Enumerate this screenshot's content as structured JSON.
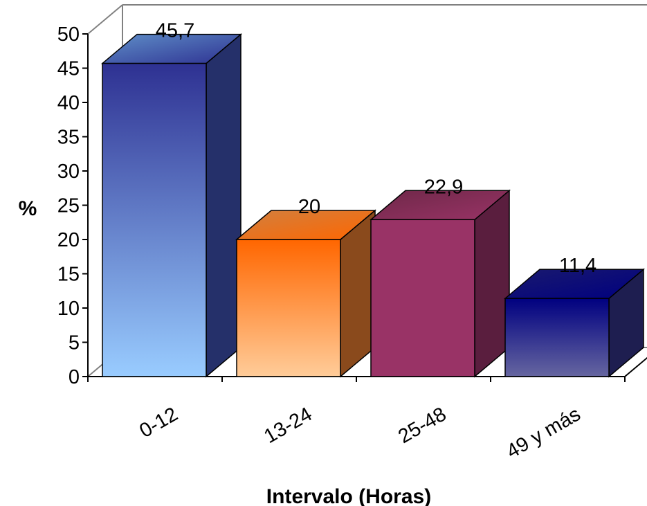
{
  "chart_data": {
    "type": "bar",
    "categories": [
      "0-12",
      "13-24",
      "25-48",
      "49 y más"
    ],
    "values": [
      45.7,
      20,
      22.9,
      11.4
    ],
    "value_labels": [
      "45,7",
      "20",
      "22,9",
      "11,4"
    ],
    "xlabel": "Intervalo (Horas)",
    "ylabel": "%",
    "ylim": [
      0,
      50
    ],
    "yticks": [
      0,
      5,
      10,
      15,
      20,
      25,
      30,
      35,
      40,
      45,
      50
    ],
    "grid": false,
    "legend": "none",
    "style": "3d-column",
    "colors": [
      {
        "top": "#2E3192",
        "bottom": "#99CCFF",
        "side": "#25306A",
        "cap": "#5F8FC8"
      },
      {
        "top": "#FF6600",
        "bottom": "#FFCC99",
        "side": "#8A4A1C",
        "cap": "#D08040"
      },
      {
        "top": "#993366",
        "bottom": "#993366",
        "side": "#5A1E3E",
        "cap": "#6E2848"
      },
      {
        "top": "#000080",
        "bottom": "#6666A0",
        "side": "#1E1E50",
        "cap": "#1A1A6E"
      }
    ]
  }
}
